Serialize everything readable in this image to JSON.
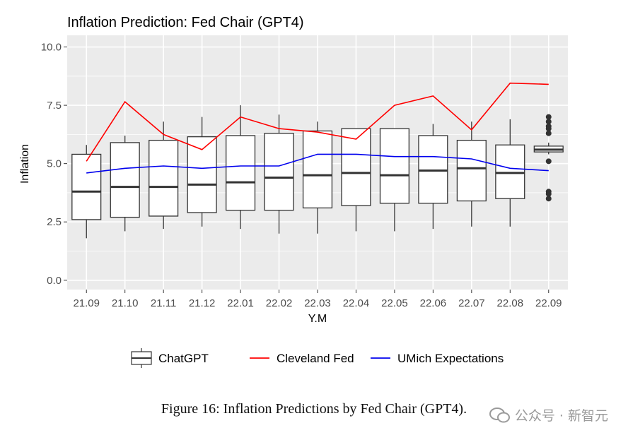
{
  "chart_data": {
    "type": "box",
    "title": "Inflation Prediction: Fed Chair (GPT4)",
    "xlabel": "Y.M",
    "ylabel": "Inflation",
    "ylim": [
      -0.4,
      10.5
    ],
    "yticks": [
      0.0,
      2.5,
      5.0,
      7.5,
      10.0
    ],
    "ytick_labels": [
      "0.0",
      "2.5",
      "5.0",
      "7.5",
      "10.0"
    ],
    "categories": [
      "21.09",
      "21.10",
      "21.11",
      "21.12",
      "22.01",
      "22.02",
      "22.03",
      "22.04",
      "22.05",
      "22.06",
      "22.07",
      "22.08",
      "22.09"
    ],
    "boxes": [
      {
        "lower": 1.8,
        "q1": 2.6,
        "median": 3.8,
        "q3": 5.4,
        "upper": 5.8,
        "outliers": []
      },
      {
        "lower": 2.1,
        "q1": 2.7,
        "median": 4.0,
        "q3": 5.9,
        "upper": 6.2,
        "outliers": []
      },
      {
        "lower": 2.2,
        "q1": 2.75,
        "median": 4.0,
        "q3": 6.0,
        "upper": 6.8,
        "outliers": []
      },
      {
        "lower": 2.3,
        "q1": 2.9,
        "median": 4.1,
        "q3": 6.15,
        "upper": 7.0,
        "outliers": []
      },
      {
        "lower": 2.2,
        "q1": 3.0,
        "median": 4.2,
        "q3": 6.2,
        "upper": 7.5,
        "outliers": []
      },
      {
        "lower": 2.0,
        "q1": 3.0,
        "median": 4.4,
        "q3": 6.3,
        "upper": 7.1,
        "outliers": []
      },
      {
        "lower": 2.0,
        "q1": 3.1,
        "median": 4.5,
        "q3": 6.4,
        "upper": 6.8,
        "outliers": []
      },
      {
        "lower": 2.1,
        "q1": 3.2,
        "median": 4.6,
        "q3": 6.5,
        "upper": 6.5,
        "outliers": []
      },
      {
        "lower": 2.1,
        "q1": 3.3,
        "median": 4.5,
        "q3": 6.5,
        "upper": 6.5,
        "outliers": []
      },
      {
        "lower": 2.2,
        "q1": 3.3,
        "median": 4.7,
        "q3": 6.2,
        "upper": 6.7,
        "outliers": []
      },
      {
        "lower": 2.3,
        "q1": 3.4,
        "median": 4.8,
        "q3": 6.0,
        "upper": 6.8,
        "outliers": []
      },
      {
        "lower": 2.3,
        "q1": 3.5,
        "median": 4.6,
        "q3": 5.8,
        "upper": 6.9,
        "outliers": []
      },
      {
        "lower": 5.4,
        "q1": 5.5,
        "median": 5.6,
        "q3": 5.75,
        "upper": 5.9,
        "outliers": [
          7.0,
          6.8,
          6.6,
          6.5,
          6.3,
          5.1,
          3.8,
          3.7,
          3.5
        ]
      }
    ],
    "series": [
      {
        "name": "Cleveland Fed",
        "color": "#ff0000",
        "values": [
          5.1,
          7.65,
          6.25,
          5.6,
          7.0,
          6.5,
          6.35,
          6.05,
          7.5,
          7.9,
          6.45,
          8.45,
          8.4
        ]
      },
      {
        "name": "UMich Expectations",
        "color": "#0000ee",
        "values": [
          4.6,
          4.8,
          4.9,
          4.8,
          4.9,
          4.9,
          5.4,
          5.4,
          5.3,
          5.3,
          5.2,
          4.8,
          4.7
        ]
      }
    ],
    "legend": {
      "position": "bottom",
      "entries": [
        {
          "label": "ChatGPT",
          "kind": "box"
        },
        {
          "label": "Cleveland Fed",
          "kind": "line",
          "color": "#ff0000"
        },
        {
          "label": "UMich Expectations",
          "kind": "line",
          "color": "#0000ee"
        }
      ]
    }
  },
  "caption": "Figure 16: Inflation Predictions by Fed Chair (GPT4).",
  "watermark": {
    "text": "公众号 · 新智元",
    "icon": "wechat-icon"
  },
  "colors": {
    "panel": "#ebebeb",
    "grid": "#ffffff",
    "box_stroke": "#333333",
    "axis_text": "#4d4d4d"
  }
}
